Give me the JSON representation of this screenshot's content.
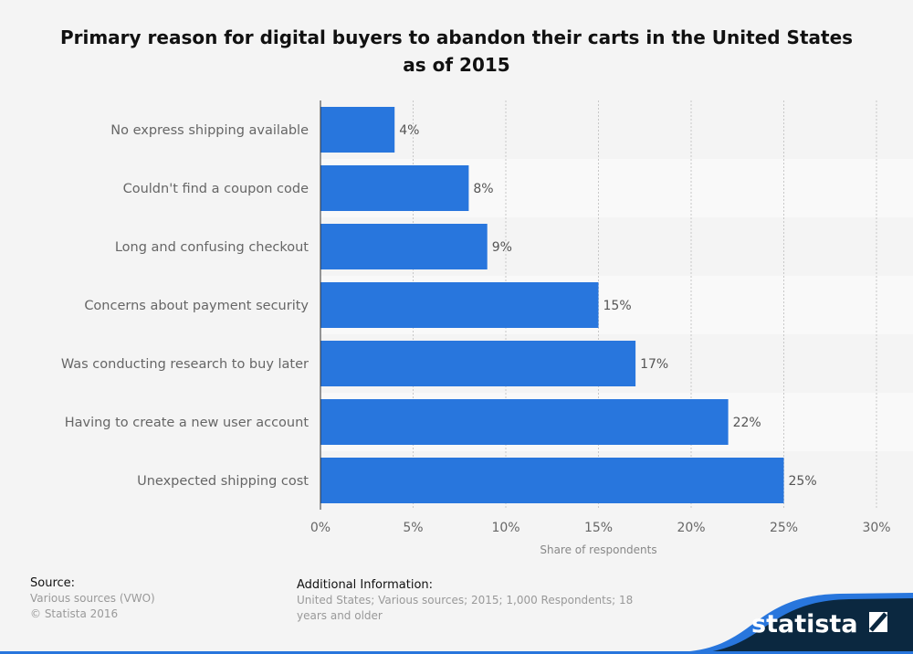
{
  "chart_data": {
    "type": "bar",
    "orientation": "horizontal",
    "title": "Primary reason for digital buyers to abandon their carts in the United States as of 2015",
    "categories": [
      "No express shipping available",
      "Couldn't find a coupon code",
      "Long and confusing checkout",
      "Concerns about payment security",
      "Was conducting research to buy later",
      "Having to create a new user account",
      "Unexpected shipping cost"
    ],
    "values": [
      4,
      8,
      9,
      15,
      17,
      22,
      25
    ],
    "data_labels": [
      "4%",
      "8%",
      "9%",
      "15%",
      "17%",
      "22%",
      "25%"
    ],
    "xlabel": "Share of respondents",
    "ylabel": "",
    "xlim": [
      0,
      30
    ],
    "ticks": [
      "0%",
      "5%",
      "10%",
      "15%",
      "20%",
      "25%",
      "30%"
    ],
    "grid": true,
    "bar_color": "#2876dd"
  },
  "footer": {
    "source_heading": "Source:",
    "source_lines": [
      "Various sources (VWO)",
      "© Statista 2016"
    ],
    "info_heading": "Additional Information:",
    "info_text": "United States; Various sources; 2015; 1,000 Respondents; 18 years and older",
    "logo": "statista"
  }
}
